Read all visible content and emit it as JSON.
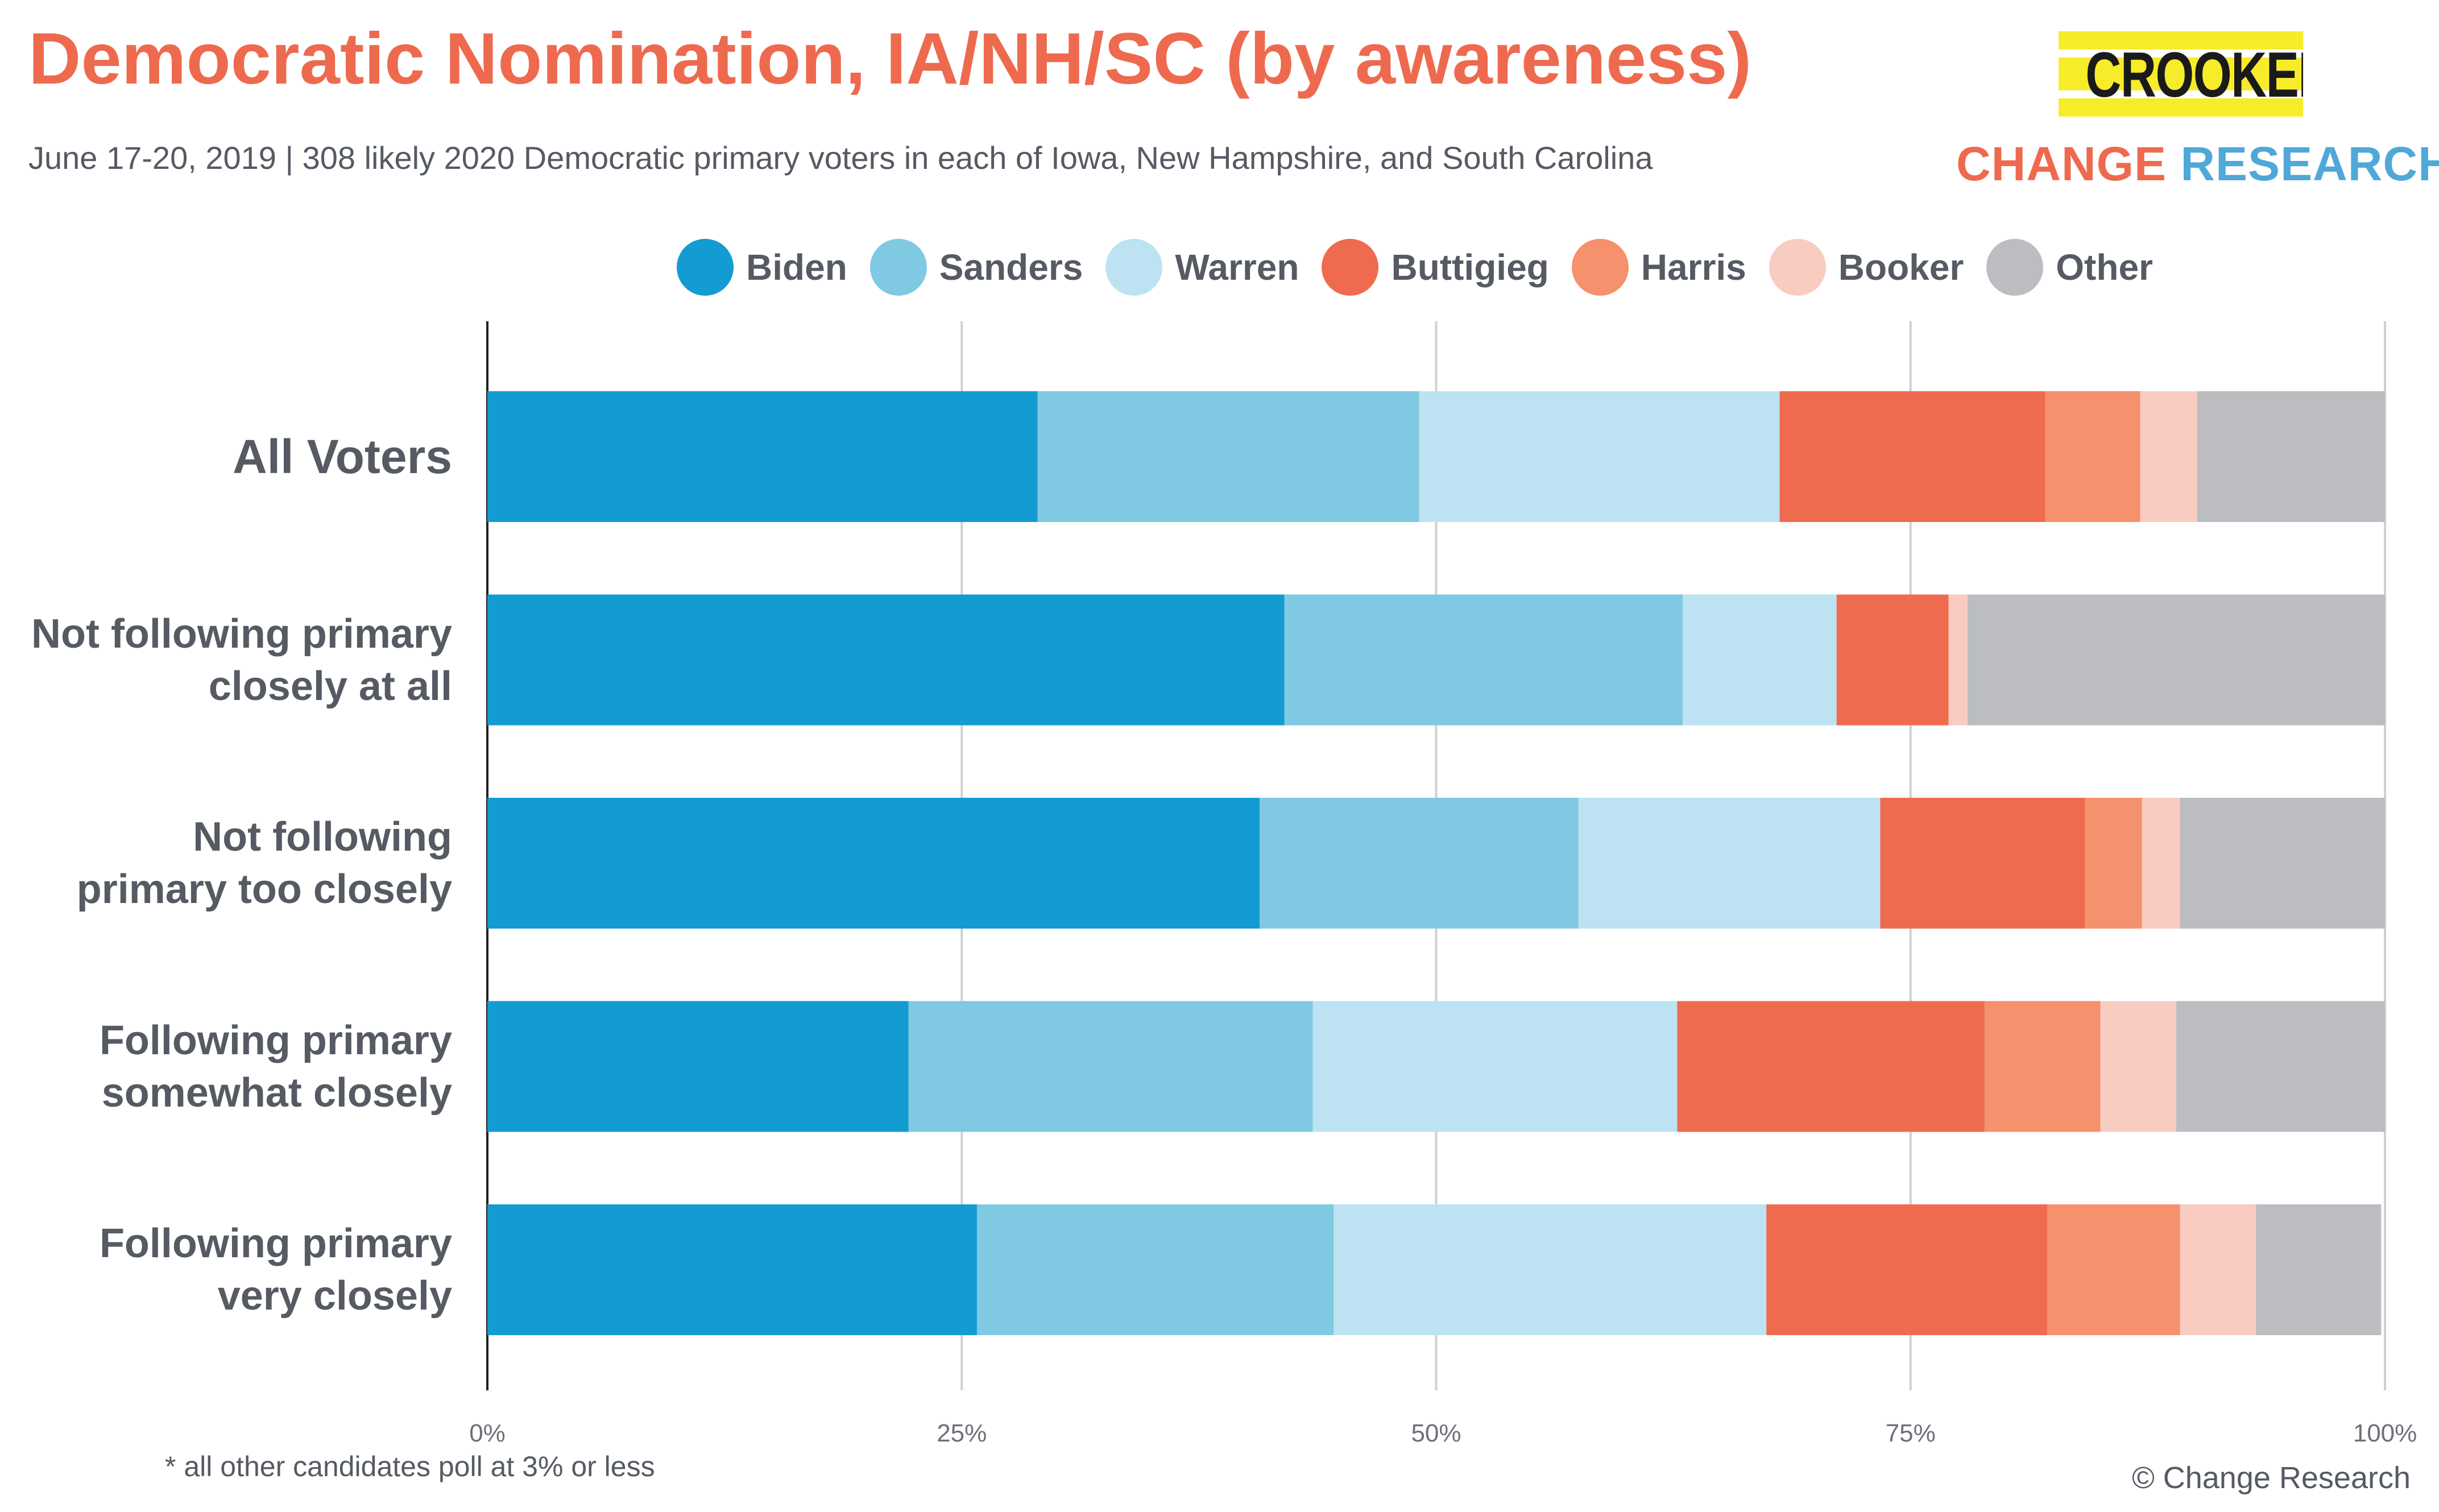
{
  "title": "Democratic Nomination, IA/NH/SC (by awareness)",
  "subtitle": "June 17-20, 2019  | 308 likely 2020 Democratic primary voters in each of Iowa, New Hampshire, and South Carolina",
  "logo": {
    "crooked": "CROOKED",
    "change": "CHANGE",
    "research": "RESEARCH",
    "tm": "™"
  },
  "footnote": "* all other candidates poll at 3% or less",
  "copyright": "© Change Research",
  "colors": {
    "Biden": "#139bd2",
    "Sanders": "#80c9e2",
    "Warren": "#bde3f2",
    "Buttigieg": "#ef6b50",
    "Harris": "#f5916c",
    "Booker": "#f9ccc1",
    "Other": "#bcbdc1"
  },
  "chart_data": {
    "type": "bar",
    "orientation": "horizontal",
    "stacked": true,
    "categories": [
      "All Voters",
      "Not following primary closely at all",
      "Not following primary too closely",
      "Following primary somewhat closely",
      "Following primary very closely"
    ],
    "category_lines": [
      [
        "All Voters"
      ],
      [
        "Not following primary",
        "closely at all"
      ],
      [
        "Not following",
        "primary too closely"
      ],
      [
        "Following primary",
        "somewhat closely"
      ],
      [
        "Following primary",
        "very closely"
      ]
    ],
    "series": [
      {
        "name": "Biden",
        "values": [
          29,
          42,
          40.7,
          22.2,
          25.8
        ]
      },
      {
        "name": "Sanders",
        "values": [
          20.1,
          21,
          16.8,
          21.3,
          18.8
        ]
      },
      {
        "name": "Warren",
        "values": [
          19,
          8.1,
          15.9,
          19.2,
          22.8
        ]
      },
      {
        "name": "Buttigieg",
        "values": [
          14,
          5.9,
          10.8,
          16.2,
          14.8
        ]
      },
      {
        "name": "Harris",
        "values": [
          5,
          0,
          3,
          6.1,
          7
        ]
      },
      {
        "name": "Booker",
        "values": [
          3,
          1,
          2,
          4,
          4
        ]
      },
      {
        "name": "Other",
        "values": [
          9.9,
          22,
          10.8,
          11,
          6.6
        ]
      }
    ],
    "xlim": [
      0,
      100
    ],
    "x_ticks": [
      "0%",
      "25%",
      "50%",
      "75%",
      "100%"
    ],
    "grid": true,
    "legend_position": "top"
  }
}
